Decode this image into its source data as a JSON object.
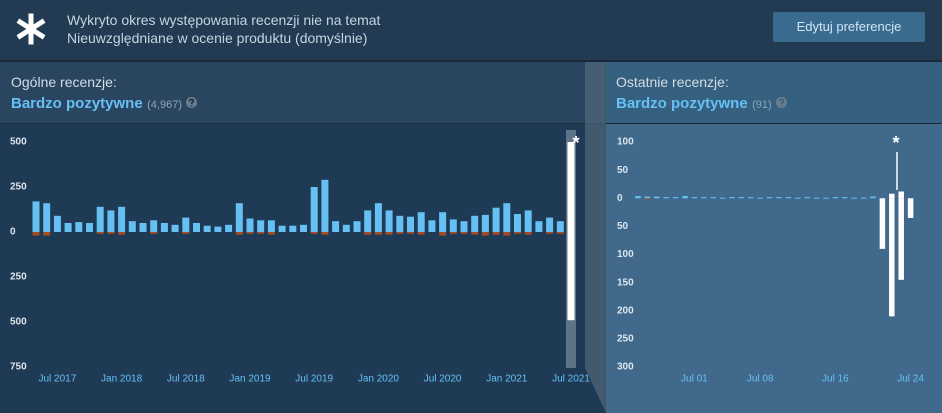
{
  "banner": {
    "line1": "Wykryto okres występowania recenzji nie na temat",
    "line2": "Nieuwzględniane w ocenie produktu (domyślnie)",
    "button": "Edytuj preferencje"
  },
  "chart_data": [
    {
      "type": "bar",
      "heading": "Ogólne recenzje:",
      "rating": "Bardzo pozytywne",
      "count": "(4,967)",
      "annotation": "*",
      "categories": [
        null,
        null,
        "Jul 2017",
        null,
        null,
        null,
        null,
        null,
        "Jan 2018",
        null,
        null,
        null,
        null,
        null,
        "Jul 2018",
        null,
        null,
        null,
        null,
        null,
        "Jan 2019",
        null,
        null,
        null,
        null,
        null,
        "Jul 2019",
        null,
        null,
        null,
        null,
        null,
        "Jan 2020",
        null,
        null,
        null,
        null,
        null,
        "Jul 2020",
        null,
        null,
        null,
        null,
        null,
        "Jan 2021",
        null,
        null,
        null,
        null,
        null,
        "Jul 2021"
      ],
      "ylim": [
        -750,
        500
      ],
      "yticks": [
        500,
        250,
        0,
        {
          "value": -250,
          "label": "250"
        },
        {
          "value": -500,
          "label": "500"
        },
        {
          "value": -750,
          "label": "750"
        }
      ],
      "series": [
        {
          "color": "#66c0f4",
          "values": [
            170,
            160,
            90,
            50,
            55,
            50,
            140,
            120,
            140,
            60,
            50,
            65,
            50,
            40,
            80,
            50,
            35,
            30,
            40,
            160,
            75,
            65,
            65,
            35,
            35,
            40,
            250,
            290,
            60,
            40,
            60,
            120,
            160,
            120,
            90,
            85,
            110,
            65,
            110,
            70,
            60,
            90,
            95,
            135,
            160,
            100,
            120,
            60,
            80,
            60,
            90
          ]
        },
        {
          "color": "#a34c25",
          "values": [
            -20,
            -20,
            null,
            null,
            null,
            null,
            -10,
            -10,
            -15,
            null,
            null,
            -10,
            null,
            null,
            -10,
            null,
            null,
            null,
            null,
            -15,
            -10,
            -10,
            -15,
            null,
            null,
            null,
            -10,
            -15,
            null,
            null,
            null,
            -15,
            -15,
            -15,
            -10,
            -10,
            -15,
            null,
            -20,
            -10,
            -10,
            -15,
            -20,
            -15,
            -20,
            -10,
            -15,
            null,
            -10,
            -10,
            -15
          ]
        },
        {
          "color": "#ffffff",
          "values": [
            null,
            null,
            null,
            null,
            null,
            null,
            null,
            null,
            null,
            null,
            null,
            null,
            null,
            null,
            null,
            null,
            null,
            null,
            null,
            null,
            null,
            null,
            null,
            null,
            null,
            null,
            null,
            null,
            null,
            null,
            null,
            null,
            null,
            null,
            null,
            null,
            null,
            null,
            null,
            null,
            null,
            null,
            null,
            null,
            null,
            null,
            null,
            null,
            null,
            null,
            500
          ]
        },
        {
          "color": "#ffffff",
          "values": [
            null,
            null,
            null,
            null,
            null,
            null,
            null,
            null,
            null,
            null,
            null,
            null,
            null,
            null,
            null,
            null,
            null,
            null,
            null,
            null,
            null,
            null,
            null,
            null,
            null,
            null,
            null,
            null,
            null,
            null,
            null,
            null,
            null,
            null,
            null,
            null,
            null,
            null,
            null,
            null,
            null,
            null,
            null,
            null,
            null,
            null,
            null,
            null,
            null,
            null,
            -490
          ]
        }
      ]
    },
    {
      "type": "bar",
      "heading": "Ostatnie recenzje:",
      "rating": "Bardzo pozytywne",
      "count": "(91)",
      "annotation": "*",
      "categories": [
        null,
        null,
        null,
        null,
        null,
        null,
        "Jul 01",
        null,
        null,
        null,
        null,
        null,
        null,
        "Jul 08",
        null,
        null,
        null,
        null,
        null,
        null,
        null,
        "Jul 16",
        null,
        null,
        null,
        null,
        null,
        null,
        null,
        "Jul 24"
      ],
      "ylim": [
        -300,
        100
      ],
      "yticks": [
        100,
        50,
        0,
        {
          "value": -50,
          "label": "50"
        },
        {
          "value": -100,
          "label": "100"
        },
        {
          "value": -150,
          "label": "150"
        },
        {
          "value": -200,
          "label": "200"
        },
        {
          "value": -250,
          "label": "250"
        },
        {
          "value": -300,
          "label": "300"
        }
      ],
      "series": [
        {
          "color": "#66c0f4",
          "values": [
            4,
            3,
            3,
            2,
            2,
            4,
            2,
            2,
            2,
            1,
            2,
            2,
            2,
            1,
            2,
            2,
            2,
            1,
            2,
            1,
            1,
            2,
            2,
            1,
            1,
            3,
            null,
            null,
            null,
            null
          ]
        },
        {
          "color": "#a34c25",
          "values": [
            null,
            -2,
            null,
            null,
            null,
            null,
            null,
            null,
            null,
            null,
            null,
            null,
            null,
            null,
            null,
            null,
            null,
            null,
            null,
            null,
            null,
            null,
            null,
            null,
            null,
            null,
            null,
            null,
            null,
            null
          ]
        },
        {
          "color": "#ffffff",
          "values": [
            null,
            null,
            null,
            null,
            null,
            null,
            null,
            null,
            null,
            null,
            null,
            null,
            null,
            null,
            null,
            null,
            null,
            null,
            null,
            null,
            null,
            null,
            null,
            null,
            null,
            null,
            null,
            8,
            12,
            null
          ]
        },
        {
          "color": "#ffffff",
          "values": [
            null,
            null,
            null,
            null,
            null,
            null,
            null,
            null,
            null,
            null,
            null,
            null,
            null,
            null,
            null,
            null,
            null,
            null,
            null,
            null,
            null,
            null,
            null,
            null,
            null,
            null,
            -90,
            -210,
            -145,
            -35
          ]
        }
      ]
    }
  ]
}
